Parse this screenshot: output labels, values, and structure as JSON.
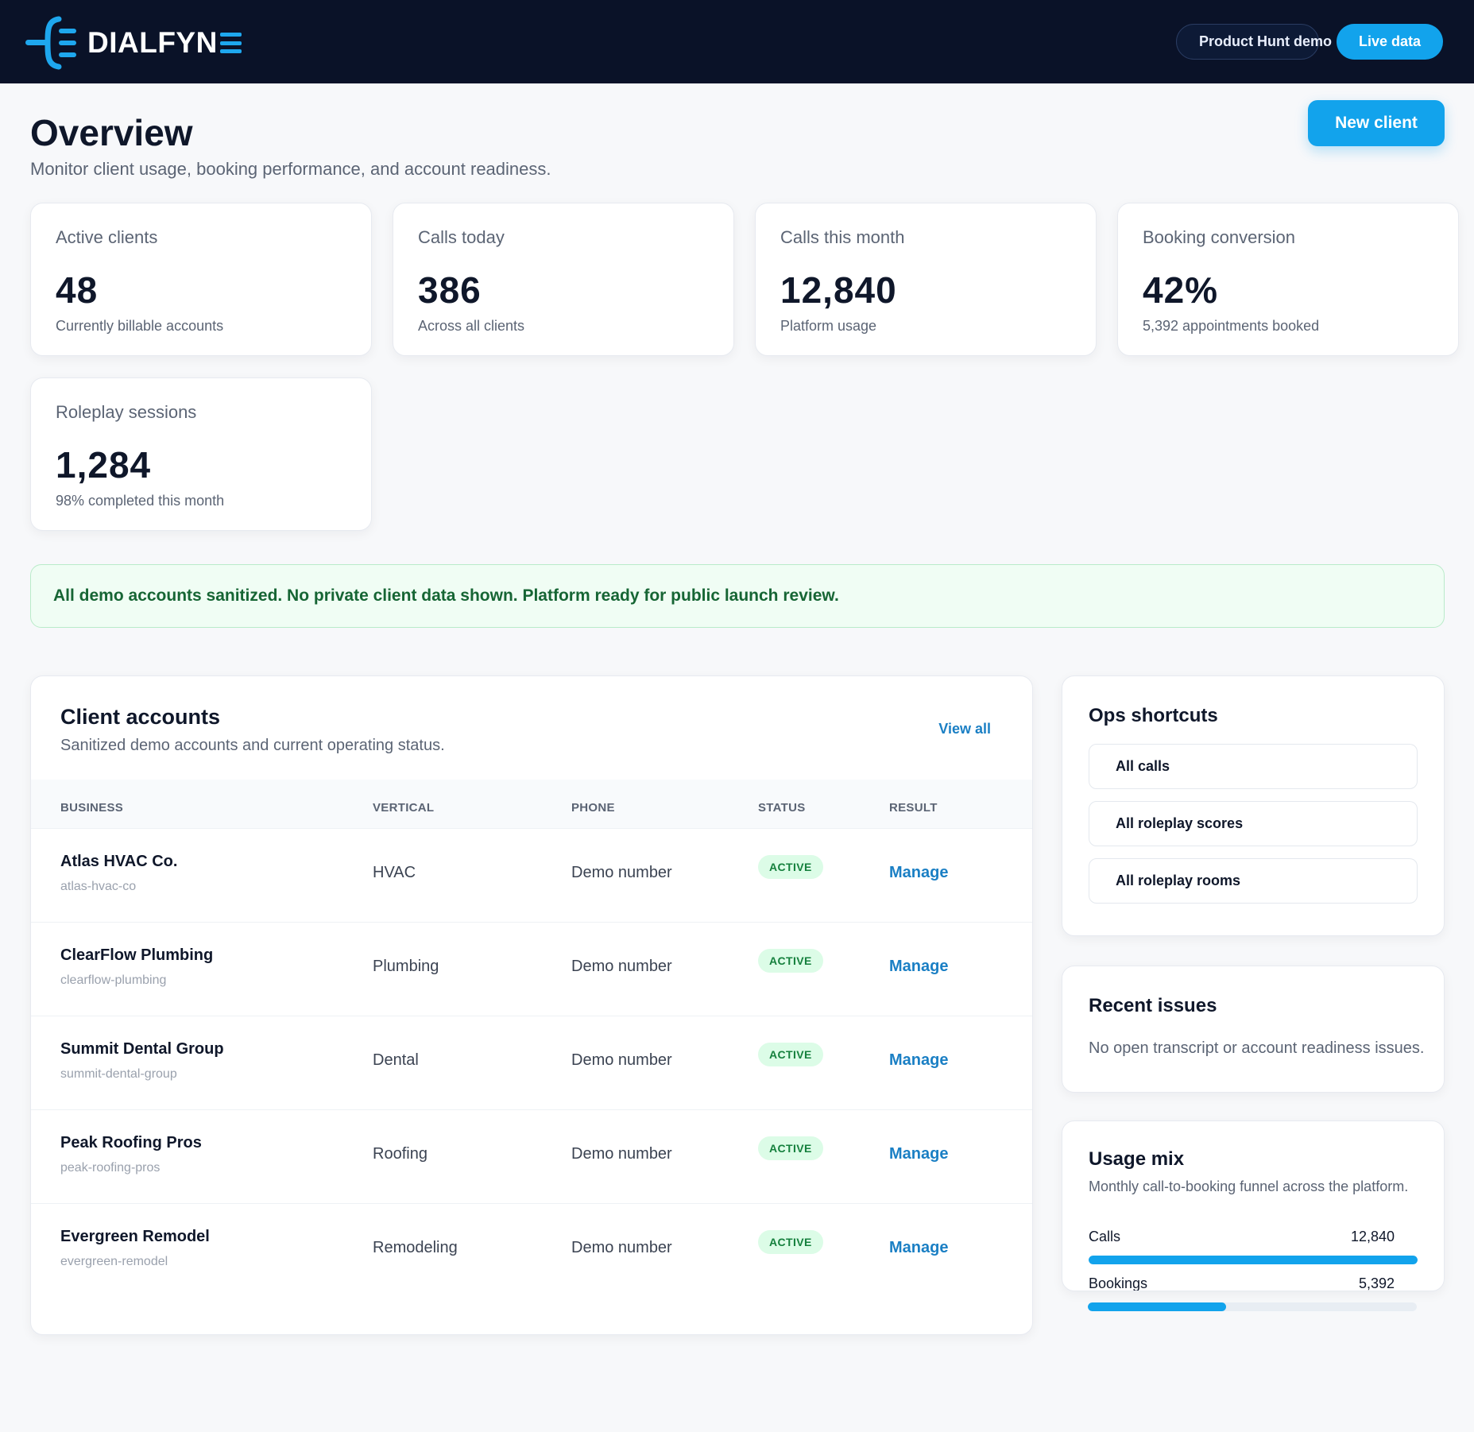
{
  "brand": {
    "name": "DIALFYN",
    "accent": "#12a3ec",
    "navy": "#0a1228"
  },
  "header": {
    "demo_label": "Product Hunt demo",
    "live_label": "Live data"
  },
  "page": {
    "title": "Overview",
    "subtitle": "Monitor client usage, booking performance, and account readiness.",
    "new_client_label": "New client"
  },
  "stats": [
    {
      "label": "Active clients",
      "value": "48",
      "note": "Currently billable accounts"
    },
    {
      "label": "Calls today",
      "value": "386",
      "note": "Across all clients"
    },
    {
      "label": "Calls this month",
      "value": "12,840",
      "note": "Platform usage"
    },
    {
      "label": "Booking conversion",
      "value": "42%",
      "note": "5,392 appointments booked"
    },
    {
      "label": "Roleplay sessions",
      "value": "1,284",
      "note": "98% completed this month"
    }
  ],
  "banner": {
    "text": "All demo accounts sanitized. No private client data shown. Platform ready for public launch review."
  },
  "accounts": {
    "title": "Client accounts",
    "subtitle": "Sanitized demo accounts and current operating status.",
    "view_all": "View all",
    "columns": [
      "BUSINESS",
      "VERTICAL",
      "PHONE",
      "STATUS",
      "RESULT"
    ],
    "rows": [
      {
        "name": "Atlas HVAC Co.",
        "slug": "atlas-hvac-co",
        "vertical": "HVAC",
        "phone": "Demo number",
        "status": "ACTIVE",
        "action": "Manage"
      },
      {
        "name": "ClearFlow Plumbing",
        "slug": "clearflow-plumbing",
        "vertical": "Plumbing",
        "phone": "Demo number",
        "status": "ACTIVE",
        "action": "Manage"
      },
      {
        "name": "Summit Dental Group",
        "slug": "summit-dental-group",
        "vertical": "Dental",
        "phone": "Demo number",
        "status": "ACTIVE",
        "action": "Manage"
      },
      {
        "name": "Peak Roofing Pros",
        "slug": "peak-roofing-pros",
        "vertical": "Roofing",
        "phone": "Demo number",
        "status": "ACTIVE",
        "action": "Manage"
      },
      {
        "name": "Evergreen Remodel",
        "slug": "evergreen-remodel",
        "vertical": "Remodeling",
        "phone": "Demo number",
        "status": "ACTIVE",
        "action": "Manage"
      }
    ]
  },
  "ops": {
    "title": "Ops shortcuts",
    "items": [
      "All calls",
      "All roleplay scores",
      "All roleplay rooms"
    ]
  },
  "issues": {
    "title": "Recent issues",
    "text": "No open transcript or account readiness issues."
  },
  "usage": {
    "title": "Usage mix",
    "subtitle": "Monthly call-to-booking funnel across the platform.",
    "items": [
      {
        "label": "Calls",
        "value": "12,840",
        "fill_fraction": 1.0
      },
      {
        "label": "Bookings",
        "value": "5,392",
        "fill_fraction": 0.42
      }
    ]
  }
}
